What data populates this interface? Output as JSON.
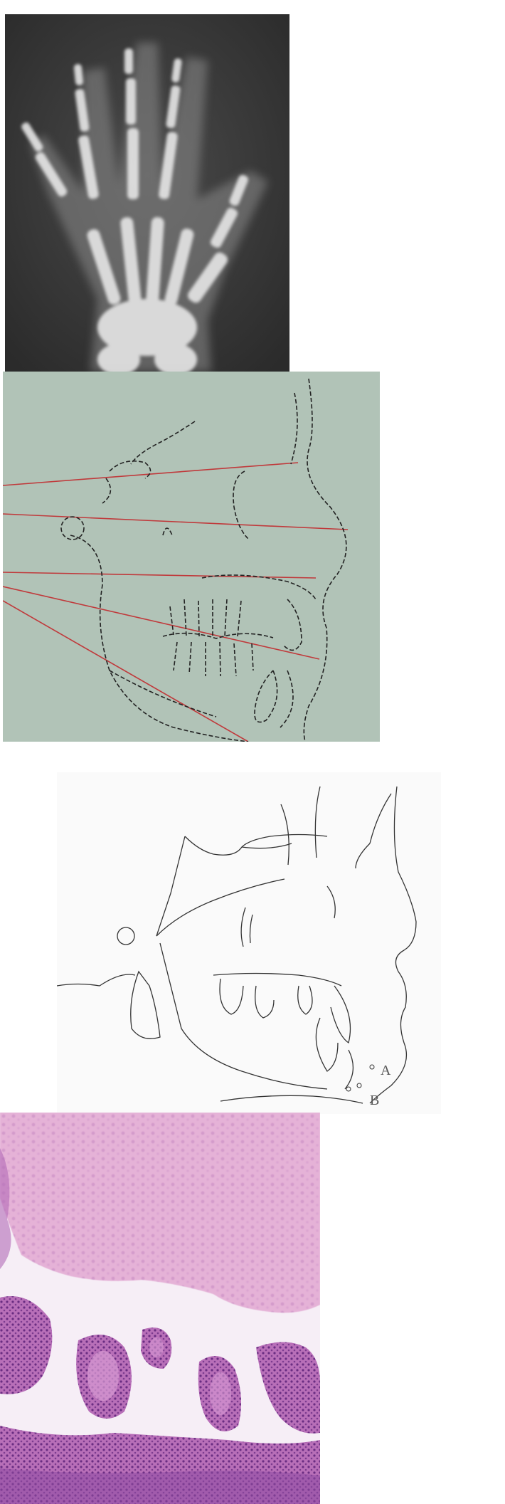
{
  "panels": [
    {
      "id": "hand-xray",
      "kind": "radiograph"
    },
    {
      "id": "ceph-lines",
      "kind": "tracing",
      "line_color": "#c0393b"
    },
    {
      "id": "ceph-profile",
      "kind": "tracing",
      "point_labels": [
        "A",
        "B"
      ]
    },
    {
      "id": "histology",
      "kind": "micrograph",
      "stain_colors": [
        "#e7b3d9",
        "#b25cb0",
        "#7c3b8f"
      ]
    }
  ],
  "labels": {
    "point_a": "A",
    "point_b": "B"
  }
}
